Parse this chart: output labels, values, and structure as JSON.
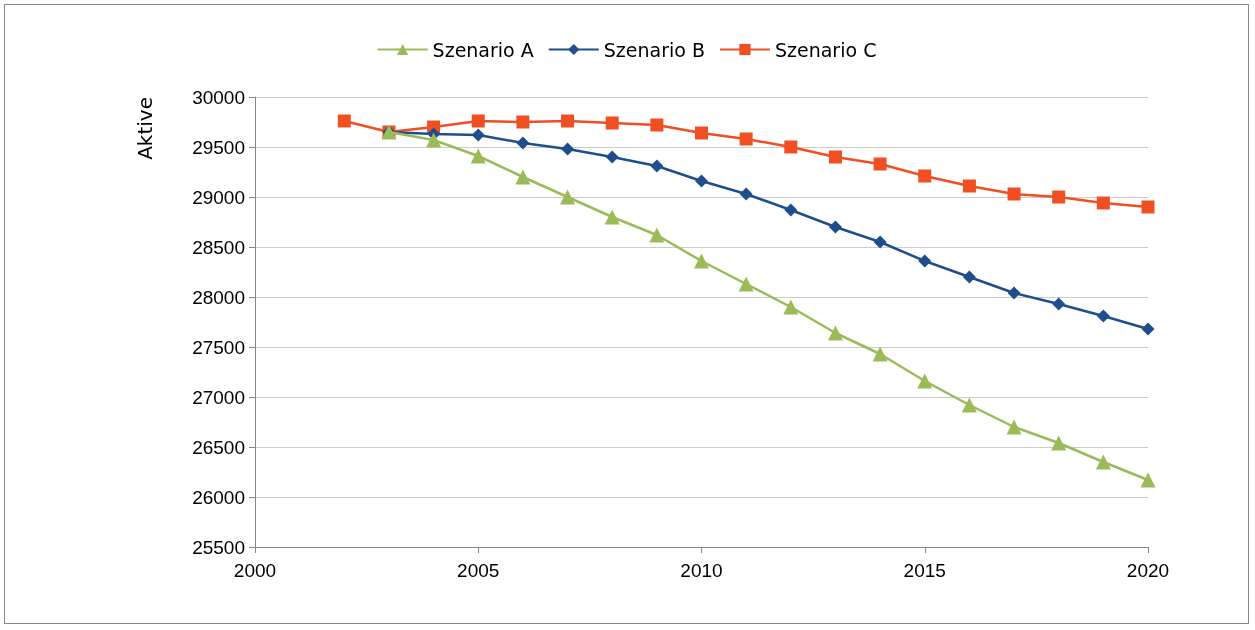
{
  "chart_data": {
    "type": "line",
    "ylabel": "Aktive",
    "xlim": [
      2000,
      2020
    ],
    "xticks": [
      2000,
      2005,
      2010,
      2015,
      2020
    ],
    "ylim": [
      25500,
      30000
    ],
    "yticks": [
      25500,
      26000,
      26500,
      27000,
      27500,
      28000,
      28500,
      29000,
      29500,
      30000
    ],
    "grid": "y",
    "legend": "top",
    "line_style": "solid",
    "series": [
      {
        "name": "Szenario A",
        "color": "#9bbb59",
        "marker": "triangle",
        "x": [
          2003,
          2004,
          2005,
          2006,
          2007,
          2008,
          2009,
          2010,
          2011,
          2012,
          2013,
          2014,
          2015,
          2016,
          2017,
          2018,
          2019,
          2020
        ],
        "values": [
          29650,
          29570,
          29410,
          29200,
          29000,
          28800,
          28620,
          28360,
          28130,
          27900,
          27640,
          27430,
          27160,
          26920,
          26700,
          26540,
          26350,
          26170
        ]
      },
      {
        "name": "Szenario B",
        "color": "#1f4e8c",
        "marker": "diamond",
        "x": [
          2003,
          2004,
          2005,
          2006,
          2007,
          2008,
          2009,
          2010,
          2011,
          2012,
          2013,
          2014,
          2015,
          2016,
          2017,
          2018,
          2019,
          2020
        ],
        "values": [
          29650,
          29630,
          29620,
          29540,
          29480,
          29400,
          29310,
          29160,
          29030,
          28870,
          28700,
          28550,
          28360,
          28200,
          28040,
          27930,
          27810,
          27680
        ]
      },
      {
        "name": "Szenario C",
        "color": "#f04e23",
        "marker": "square",
        "x": [
          2002,
          2003,
          2004,
          2005,
          2006,
          2007,
          2008,
          2009,
          2010,
          2011,
          2012,
          2013,
          2014,
          2015,
          2016,
          2017,
          2018,
          2019,
          2020
        ],
        "values": [
          29760,
          29650,
          29700,
          29760,
          29750,
          29760,
          29740,
          29720,
          29640,
          29580,
          29500,
          29400,
          29330,
          29210,
          29110,
          29030,
          29000,
          28940,
          28900
        ]
      }
    ]
  }
}
